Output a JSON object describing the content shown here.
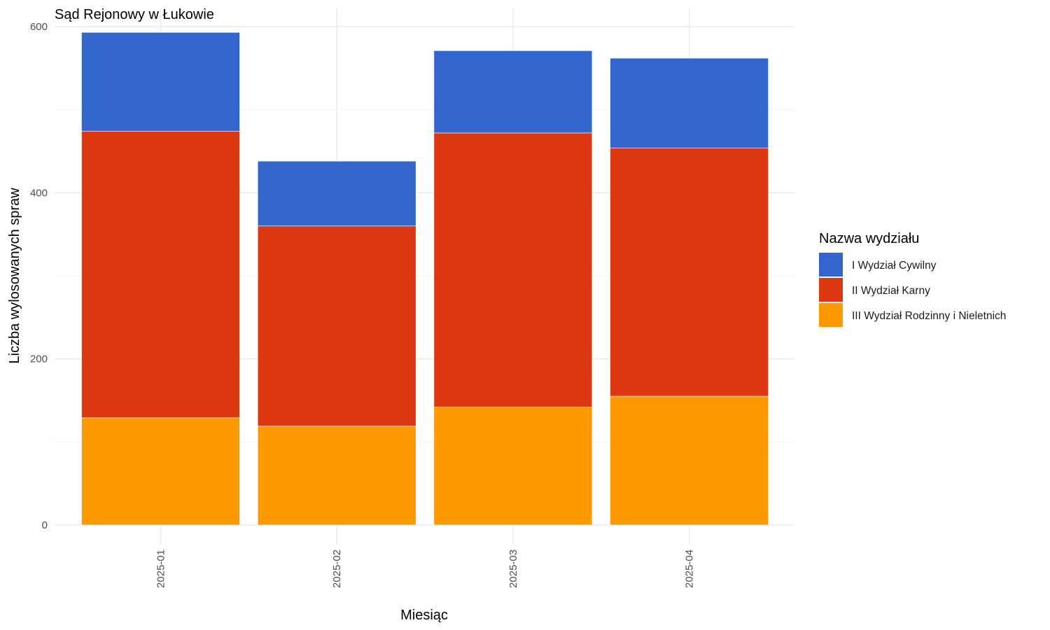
{
  "chart_data": {
    "type": "bar",
    "stacked": true,
    "title": "Sąd Rejonowy w Łukowie",
    "xlabel": "Miesiąc",
    "ylabel": "Liczba wylosowanych spraw",
    "categories": [
      "2025-01",
      "2025-02",
      "2025-03",
      "2025-04"
    ],
    "ylim": [
      0,
      600
    ],
    "yticks": [
      0,
      200,
      400,
      600
    ],
    "grid": true,
    "legend": {
      "title": "Nazwa wydziału",
      "position": "right"
    },
    "series": [
      {
        "name": "III Wydział Rodzinny i Nieletnich",
        "color": "#FF9900",
        "values": [
          129,
          119,
          142,
          155
        ]
      },
      {
        "name": "II Wydział Karny",
        "color": "#DC3912",
        "values": [
          345,
          241,
          330,
          299
        ]
      },
      {
        "name": "I Wydział Cywilny",
        "color": "#3366CC",
        "values": [
          119,
          78,
          99,
          108
        ]
      }
    ]
  }
}
